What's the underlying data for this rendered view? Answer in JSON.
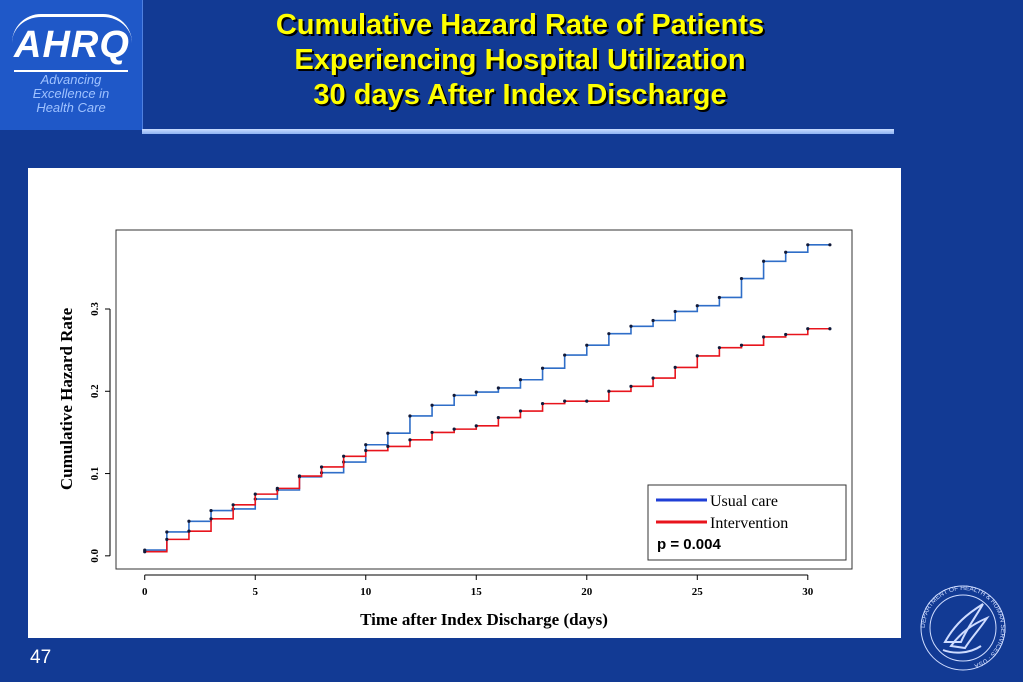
{
  "logo": {
    "wordmark": "AHRQ",
    "tagline": [
      "Advancing",
      "Excellence in",
      "Health Care"
    ]
  },
  "slide": {
    "title_lines": [
      "Cumulative Hazard Rate of Patients",
      "Experiencing Hospital Utilization",
      "30 days After Index Discharge"
    ],
    "page_number": "47"
  },
  "seal": {
    "name": "hhs-seal-icon",
    "text": "DEPARTMENT OF HEALTH & HUMAN SERVICES · USA"
  },
  "colors": {
    "background": "#123a94",
    "title": "#ffff00",
    "usual_care": "#2f6ec8",
    "intervention": "#e8141c"
  },
  "chart_data": {
    "type": "line",
    "step": true,
    "title": "",
    "xlabel": "Time after Index Discharge (days)",
    "ylabel": "Cumulative Hazard Rate",
    "xlim": [
      -1.3,
      32
    ],
    "ylim": [
      -0.016,
      0.396
    ],
    "x_ticks": [
      0,
      5,
      10,
      15,
      20,
      25,
      30
    ],
    "y_ticks": [
      0.0,
      0.1,
      0.2,
      0.3
    ],
    "x_tick_labels": [
      "0",
      "5",
      "10",
      "15",
      "20",
      "25",
      "30"
    ],
    "y_tick_labels": [
      "0.0",
      "0.1",
      "0.2",
      "0.3"
    ],
    "grid": false,
    "legend": {
      "placement": "bottom-right",
      "entries": [
        "Usual care",
        "Intervention"
      ],
      "annotation": "p = 0.004"
    },
    "series": [
      {
        "name": "Usual care",
        "color": "#2f6ec8",
        "x": [
          0,
          1,
          2,
          3,
          4,
          5,
          6,
          7,
          8,
          9,
          10,
          11,
          12,
          13,
          14,
          15,
          16,
          17,
          18,
          19,
          20,
          21,
          22,
          23,
          24,
          25,
          26,
          27,
          28,
          29,
          30,
          31
        ],
        "values": [
          0.007,
          0.029,
          0.042,
          0.055,
          0.057,
          0.069,
          0.08,
          0.096,
          0.101,
          0.114,
          0.135,
          0.149,
          0.17,
          0.183,
          0.195,
          0.199,
          0.204,
          0.214,
          0.228,
          0.244,
          0.256,
          0.27,
          0.279,
          0.286,
          0.297,
          0.304,
          0.314,
          0.337,
          0.358,
          0.369,
          0.378,
          0.378
        ]
      },
      {
        "name": "Intervention",
        "color": "#e8141c",
        "x": [
          0,
          1,
          2,
          3,
          4,
          5,
          6,
          7,
          8,
          9,
          10,
          11,
          12,
          13,
          14,
          15,
          16,
          17,
          18,
          19,
          20,
          21,
          22,
          23,
          24,
          25,
          26,
          27,
          28,
          29,
          30,
          31
        ],
        "values": [
          0.005,
          0.02,
          0.03,
          0.045,
          0.062,
          0.075,
          0.082,
          0.097,
          0.108,
          0.121,
          0.128,
          0.133,
          0.141,
          0.15,
          0.154,
          0.158,
          0.168,
          0.176,
          0.185,
          0.188,
          0.188,
          0.2,
          0.206,
          0.216,
          0.229,
          0.243,
          0.253,
          0.256,
          0.266,
          0.269,
          0.276,
          0.276
        ]
      }
    ]
  }
}
